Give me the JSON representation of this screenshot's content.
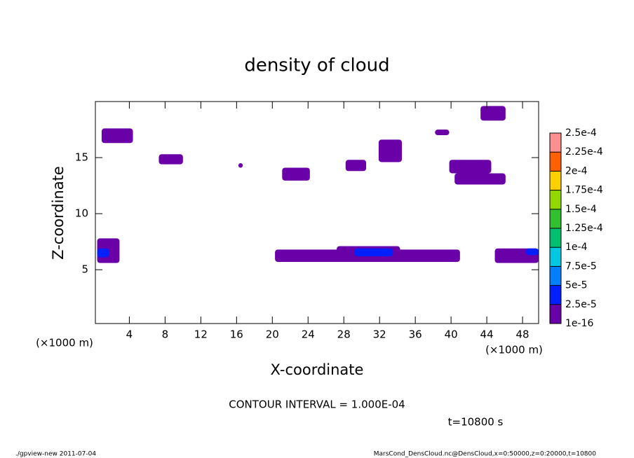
{
  "chart_data": {
    "type": "contour",
    "title": "density of cloud",
    "x_label": "X-coordinate",
    "y_label": "Z-coordinate",
    "x_unit": "(×1000 m)",
    "y_unit": "(×1000 m)",
    "contour_note": "CONTOUR INTERVAL = 1.000E-04",
    "time_note": "t=10800 s",
    "footer_left": "./gpview-new  2011-07-04",
    "footer_right": "MarsCond_DensCloud.nc@DensCloud,x=0:50000,z=0:20000,t=10800",
    "xlim": [
      0.2,
      49.8
    ],
    "ylim": [
      0.2,
      20
    ],
    "xticks": [
      4,
      8,
      12,
      16,
      20,
      24,
      28,
      32,
      36,
      40,
      44,
      48
    ],
    "yticks": [
      5,
      10,
      15
    ],
    "regions": [
      {
        "x": [
          0.9,
          4.4
        ],
        "z": [
          16.3,
          17.6
        ],
        "value": 1e-05
      },
      {
        "x": [
          7.3,
          10.0
        ],
        "z": [
          14.4,
          15.3
        ],
        "value": 1e-05
      },
      {
        "x": [
          16.2,
          16.7
        ],
        "z": [
          14.1,
          14.5
        ],
        "value": 1e-05
      },
      {
        "x": [
          21.1,
          24.2
        ],
        "z": [
          12.95,
          14.1
        ],
        "value": 1e-05
      },
      {
        "x": [
          28.2,
          30.5
        ],
        "z": [
          13.8,
          14.8
        ],
        "value": 1e-05
      },
      {
        "x": [
          31.9,
          34.5
        ],
        "z": [
          14.6,
          16.6
        ],
        "value": 1e-05
      },
      {
        "x": [
          38.2,
          39.8
        ],
        "z": [
          17.0,
          17.5
        ],
        "value": 1e-05
      },
      {
        "x": [
          39.8,
          44.5
        ],
        "z": [
          13.6,
          14.8
        ],
        "value": 1e-05
      },
      {
        "x": [
          40.4,
          46.1
        ],
        "z": [
          12.6,
          13.6
        ],
        "value": 1e-05
      },
      {
        "x": [
          43.3,
          46.1
        ],
        "z": [
          18.3,
          19.6
        ],
        "value": 1e-05
      },
      {
        "x": [
          0.4,
          2.9
        ],
        "z": [
          5.6,
          7.8
        ],
        "value": 1e-05
      },
      {
        "x": [
          20.3,
          41.0
        ],
        "z": [
          5.7,
          6.8
        ],
        "value": 1e-05
      },
      {
        "x": [
          27.2,
          34.3
        ],
        "z": [
          6.2,
          7.1
        ],
        "value": 1e-05
      },
      {
        "x": [
          44.9,
          49.8
        ],
        "z": [
          5.6,
          6.9
        ],
        "value": 1e-05
      },
      {
        "x": [
          29.2,
          33.5
        ],
        "z": [
          6.2,
          6.9
        ],
        "value": 4e-05
      },
      {
        "x": [
          48.4,
          49.8
        ],
        "z": [
          6.3,
          6.9
        ],
        "value": 4e-05
      },
      {
        "x": [
          0.4,
          1.7
        ],
        "z": [
          6.1,
          6.9
        ],
        "value": 4e-05
      }
    ],
    "colorbar": {
      "levels": [
        {
          "value": 1e-16,
          "label": "1e-16"
        },
        {
          "value": 2.5e-05,
          "label": "2.5e-5"
        },
        {
          "value": 5e-05,
          "label": "5e-5"
        },
        {
          "value": 7.5e-05,
          "label": "7.5e-5"
        },
        {
          "value": 0.0001,
          "label": "1e-4"
        },
        {
          "value": 0.000125,
          "label": "1.25e-4"
        },
        {
          "value": 0.00015,
          "label": "1.5e-4"
        },
        {
          "value": 0.000175,
          "label": "1.75e-4"
        },
        {
          "value": 0.0002,
          "label": "2e-4"
        },
        {
          "value": 0.000225,
          "label": "2.25e-4"
        },
        {
          "value": 0.00025,
          "label": "2.5e-4"
        }
      ],
      "colors": [
        "#6a00a8",
        "#0020ff",
        "#0080ff",
        "#00c8e0",
        "#00c070",
        "#30c030",
        "#90d800",
        "#ffd000",
        "#ff6000",
        "#ff9090"
      ]
    }
  }
}
